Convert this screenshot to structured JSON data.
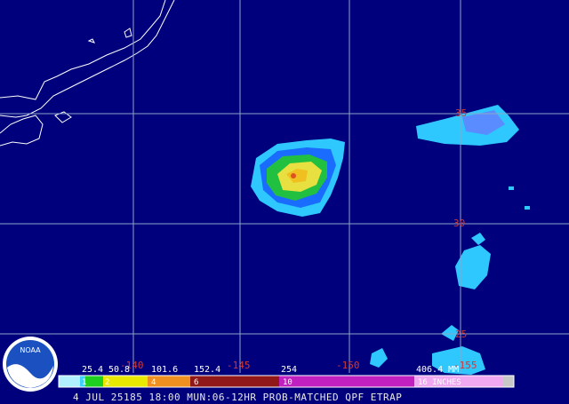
{
  "logo": "NOAA",
  "grid_labels": {
    "latitude": [
      "35",
      "30",
      "25"
    ],
    "longitude": [
      "-140",
      "-145",
      "-150",
      "-155"
    ]
  },
  "legend": {
    "mm_labels": [
      "25.4",
      "50.8",
      "101.6",
      "152.4",
      "254",
      "406.4 MM"
    ],
    "inch_labels": [
      "1",
      "2",
      "4",
      "6",
      "10",
      "16 INCHES"
    ]
  },
  "footer": "4 JUL 25185 18:00 MUN:06-12HR PROB-MATCHED QPF ETRAP"
}
